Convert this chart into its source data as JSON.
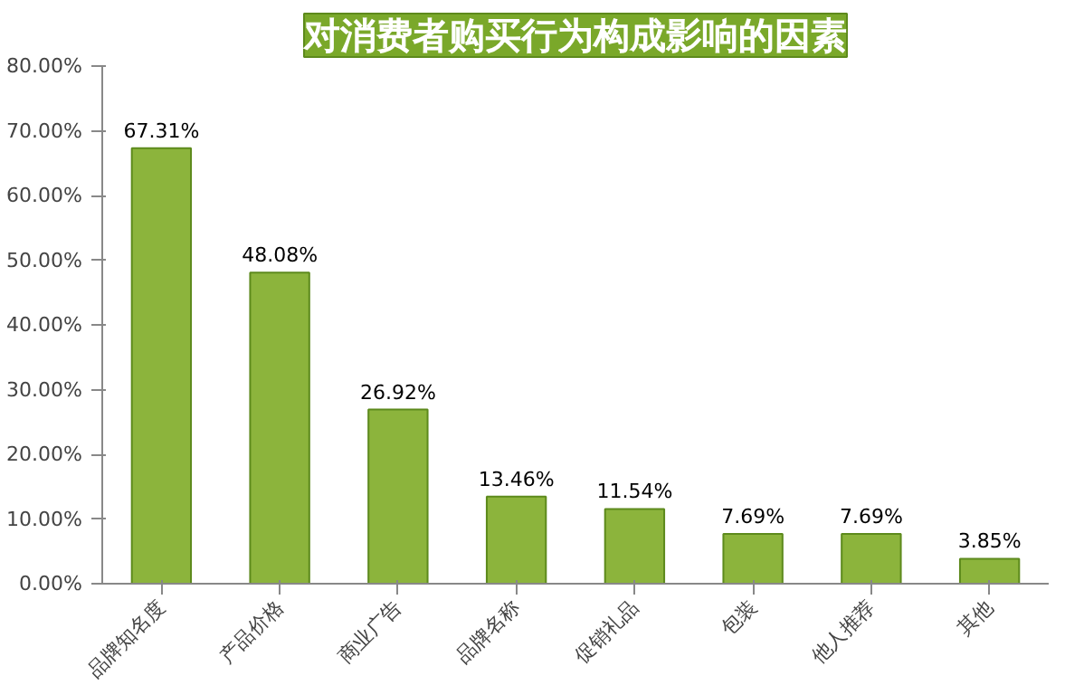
{
  "chart_data": {
    "type": "bar",
    "title": "对消费者购买行为构成影响的因素",
    "categories": [
      "品牌知名度",
      "产品价格",
      "商业广告",
      "品牌名称",
      "促销礼品",
      "包装",
      "他人推荐",
      "其他"
    ],
    "values": [
      67.31,
      48.08,
      26.92,
      13.46,
      11.54,
      7.69,
      7.69,
      3.85
    ],
    "value_labels": [
      "67.31%",
      "48.08%",
      "26.92%",
      "13.46%",
      "11.54%",
      "7.69%",
      "7.69%",
      "3.85%"
    ],
    "color": "#8cb43c",
    "ylim": [
      0,
      80
    ],
    "yticks": [
      {
        "value": 0,
        "label": "0.00%"
      },
      {
        "value": 10,
        "label": "10.00%"
      },
      {
        "value": 20,
        "label": "20.00%"
      },
      {
        "value": 30,
        "label": "30.00%"
      },
      {
        "value": 40,
        "label": "40.00%"
      },
      {
        "value": 50,
        "label": "50.00%"
      },
      {
        "value": 60,
        "label": "60.00%"
      },
      {
        "value": 70,
        "label": "70.00%"
      },
      {
        "value": 80,
        "label": "80.00%"
      }
    ],
    "grid": false
  }
}
